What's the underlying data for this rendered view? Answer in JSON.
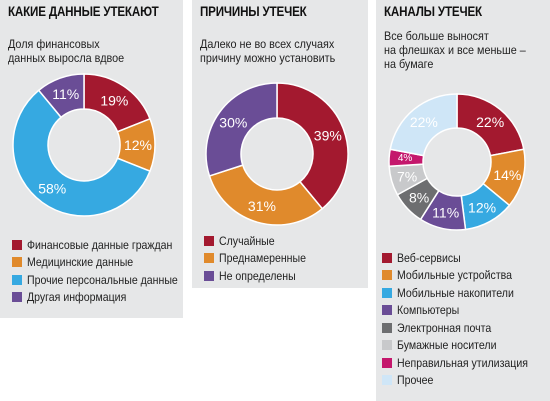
{
  "colors": {
    "crimson": "#a3192f",
    "orange": "#e08a2c",
    "blue": "#36a9e1",
    "purple": "#6a4d96",
    "gray": "#6d6e70",
    "lightgray": "#c8c9cb",
    "magenta": "#c4176c",
    "lightblue": "#cfe6f7"
  },
  "chart_data": [
    {
      "type": "pie",
      "title": "КАКИЕ ДАННЫЕ УТЕКАЮТ",
      "subtitle": [
        "Доля финансовых",
        "данных выросла вдвое"
      ],
      "series": [
        {
          "name": "Финансовые данные граждан",
          "value": 19,
          "label": "19%"
        },
        {
          "name": "Медицинские данные",
          "value": 12,
          "label": "12%"
        },
        {
          "name": "Прочие персональные данные",
          "value": 58,
          "label": "58%"
        },
        {
          "name": "Другая информация",
          "value": 11,
          "label": "11%"
        }
      ]
    },
    {
      "type": "pie",
      "title": "ПРИЧИНЫ УТЕЧЕК",
      "subtitle": [
        "Далеко не во всех случаях",
        "причину можно установить"
      ],
      "series": [
        {
          "name": "Случайные",
          "value": 39,
          "label": "39%"
        },
        {
          "name": "Преднамеренные",
          "value": 31,
          "label": "31%"
        },
        {
          "name": "Не определены",
          "value": 30,
          "label": "30%"
        }
      ]
    },
    {
      "type": "pie",
      "title": "КАНАЛЫ УТЕЧЕК",
      "subtitle": [
        "Все больше выносят",
        "на флешках и все меньше –",
        "на бумаге"
      ],
      "series": [
        {
          "name": "Веб-сервисы",
          "value": 22,
          "label": "22%"
        },
        {
          "name": "Мобильные устройства",
          "value": 14,
          "label": "14%"
        },
        {
          "name": "Мобильные накопители",
          "value": 12,
          "label": "12%"
        },
        {
          "name": "Компьютеры",
          "value": 11,
          "label": "11%"
        },
        {
          "name": "Электронная почта",
          "value": 8,
          "label": "8%"
        },
        {
          "name": "Бумажные носители",
          "value": 7,
          "label": "7%"
        },
        {
          "name": "Неправильная утилизация",
          "value": 4,
          "label": "4%"
        },
        {
          "name": "Прочее",
          "value": 22,
          "label": "22%"
        }
      ]
    }
  ]
}
